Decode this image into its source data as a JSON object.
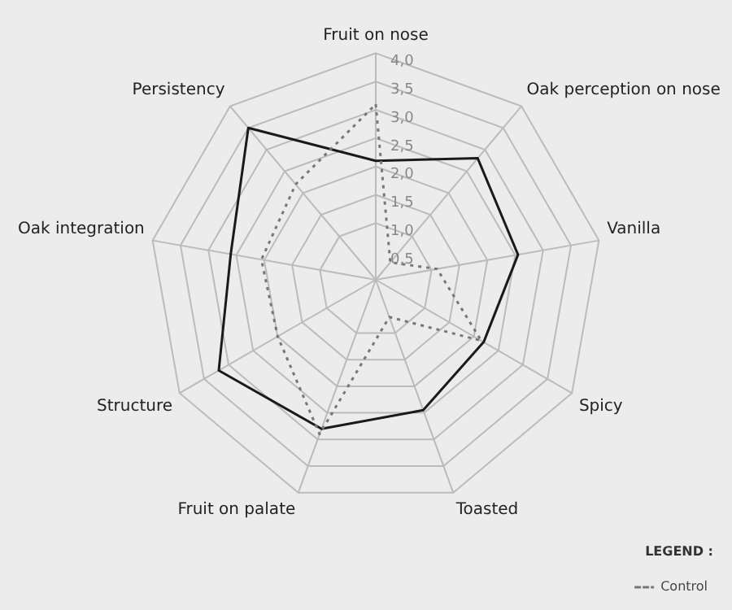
{
  "chart_data": {
    "type": "radar",
    "categories": [
      "Fruit on nose",
      "Oak perception on nose",
      "Vanilla",
      "Spicy",
      "Toasted",
      "Fruit on palate",
      "Structure",
      "Oak integration",
      "Persistency"
    ],
    "series": [
      {
        "name": "Control",
        "color": "#777777",
        "line_style": "dotted",
        "values": [
          3.1,
          0.4,
          1.1,
          2.15,
          0.7,
          2.9,
          2.0,
          2.05,
          2.2
        ]
      },
      {
        "color": "#1a1a1a",
        "line_style": "solid",
        "values": [
          2.1,
          2.8,
          2.55,
          2.2,
          2.45,
          2.8,
          3.2,
          2.6,
          3.5
        ]
      }
    ],
    "ylim": [
      0,
      4
    ],
    "yticks": [
      {
        "value": 0.5,
        "label": "0,5"
      },
      {
        "value": 1,
        "label": "1,0"
      },
      {
        "value": 1.5,
        "label": "1,5"
      },
      {
        "value": 2,
        "label": "2,0"
      },
      {
        "value": 2.5,
        "label": "2,5"
      },
      {
        "value": 3,
        "label": "3,0"
      },
      {
        "value": 3.5,
        "label": "3,5"
      },
      {
        "value": 4,
        "label": "4,0"
      }
    ],
    "grid": true,
    "marker": "none",
    "legend": "bottom right",
    "legend_title": "LEGEND :"
  }
}
